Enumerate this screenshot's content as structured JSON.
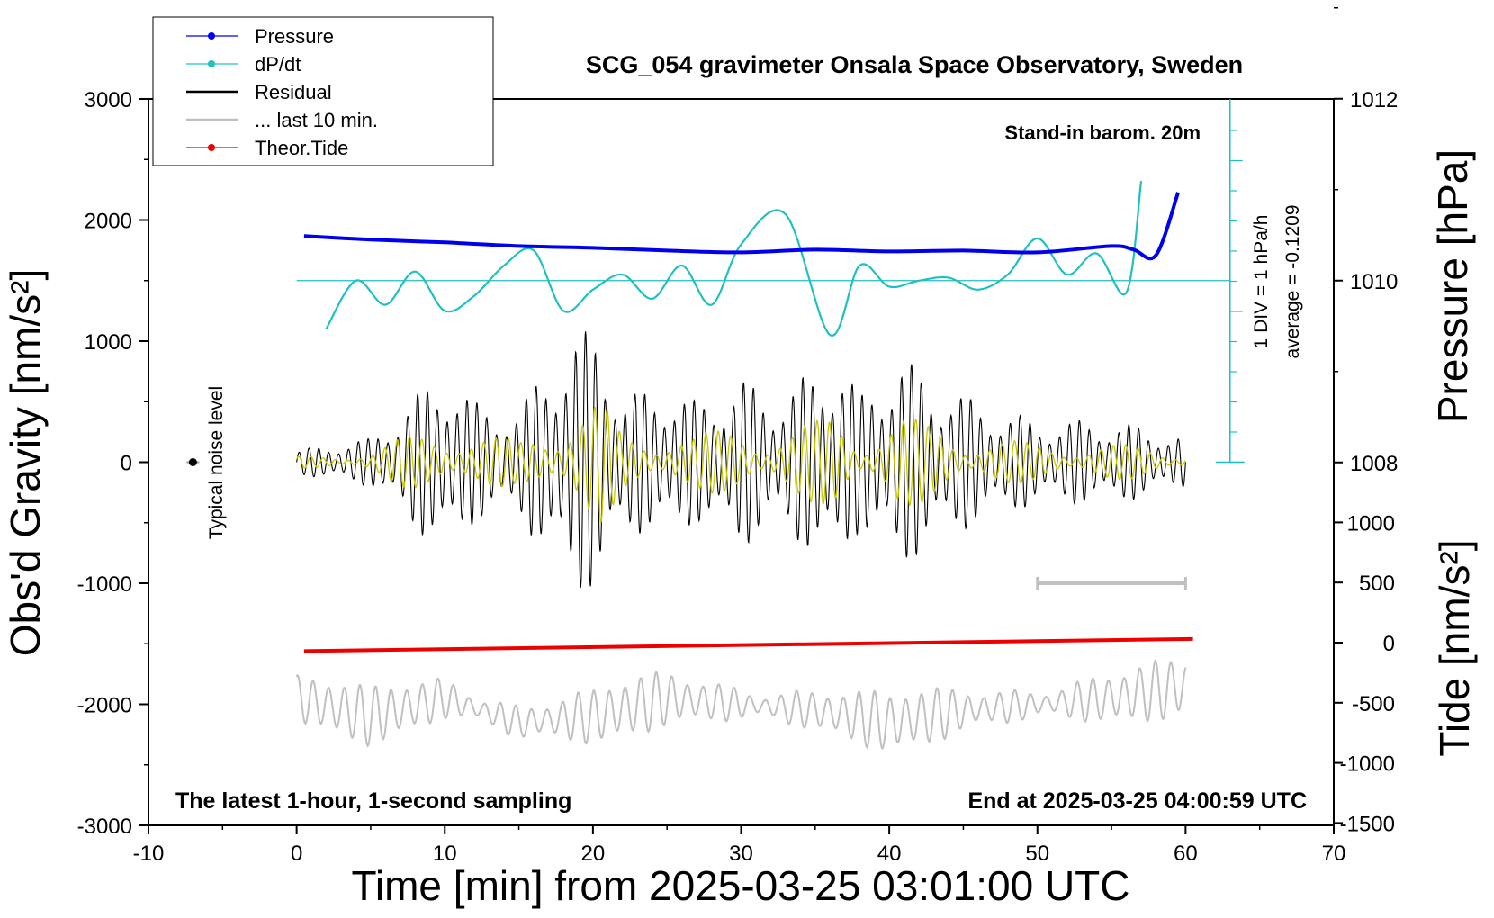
{
  "chart_data": {
    "type": "line",
    "title": "SCG_054 gravimeter Onsala Space Observatory, Sweden",
    "xlabel": "Time [min] from 2025-03-25 03:01:00 UTC",
    "ylabel_left": "Obs'd Gravity [nm/s²]",
    "ylabel_right_pressure": "Pressure [hPa]",
    "ylabel_right_tide": "Tide [nm/s²]",
    "xlim": [
      -10,
      70
    ],
    "ylim": [
      -3000,
      3000
    ],
    "x_ticks": [
      "-10",
      "0",
      "10",
      "20",
      "30",
      "40",
      "50",
      "60",
      "70"
    ],
    "y_ticks": [
      "3000",
      "2000",
      "1000",
      "0",
      "-1000",
      "-2000",
      "-3000"
    ],
    "pressure_ticks": [
      "1012",
      "1010",
      "1008"
    ],
    "tide_ticks": [
      "1000",
      "500",
      "0",
      "-500",
      "-1000",
      "-1500"
    ],
    "grid": false,
    "legend_position": "top-left",
    "legend": [
      {
        "name": "Pressure",
        "color": "#0000ee"
      },
      {
        "name": "dP/dt",
        "color": "#20c0c0"
      },
      {
        "name": "Residual",
        "color": "#000000"
      },
      {
        "name": "... last 10 min.",
        "color": "#c0c0c0"
      },
      {
        "name": "Theor.Tide",
        "color": "#ee0000"
      }
    ],
    "annotations": {
      "stand_in": "Stand-in barom. 20m",
      "div": "1 DIV = 1 hPa/h",
      "average": "average = -0.1209",
      "noise": "Typical noise level",
      "sampling": "The latest 1-hour, 1-second sampling",
      "end": "End at 2025-03-25 04:00:59 UTC"
    },
    "series": [
      {
        "name": "Pressure",
        "x": [
          0.5,
          5,
          10,
          15,
          20,
          25,
          30,
          35,
          40,
          45,
          50,
          55,
          56.5,
          58,
          59.5
        ],
        "values": [
          1010.49,
          1010.45,
          1010.42,
          1010.38,
          1010.36,
          1010.33,
          1010.31,
          1010.34,
          1010.32,
          1010.33,
          1010.31,
          1010.38,
          1010.34,
          1010.28,
          1010.97
        ]
      },
      {
        "name": "dP/dt",
        "x": [
          2,
          4,
          6,
          8,
          10,
          12,
          14,
          16,
          18,
          20,
          22,
          24,
          26,
          28,
          30,
          33,
          36,
          38,
          40,
          42,
          44,
          46,
          48,
          50,
          52,
          54,
          56,
          57
        ],
        "values": [
          -1.6,
          0.0,
          -0.8,
          0.3,
          -1.0,
          -0.5,
          0.5,
          1.0,
          -1.0,
          -0.3,
          0.2,
          -0.6,
          0.5,
          -0.8,
          1.2,
          2.2,
          -1.8,
          0.5,
          -0.2,
          0.0,
          0.1,
          -0.3,
          0.2,
          1.4,
          0.2,
          0.9,
          -0.4,
          3.3
        ]
      },
      {
        "name": "Residual",
        "x": [
          0,
          5,
          10,
          12,
          15,
          17,
          19,
          20.5,
          22,
          25,
          27,
          30,
          32,
          35,
          36.5,
          38,
          40.5,
          43,
          46,
          50,
          54,
          57,
          60
        ],
        "amplitude": [
          100,
          200,
          780,
          500,
          420,
          870,
          1050,
          1150,
          550,
          650,
          500,
          700,
          560,
          750,
          950,
          550,
          900,
          680,
          500,
          340,
          350,
          300,
          200
        ]
      },
      {
        "name": "... last 10 min.",
        "x": [
          0,
          5,
          10,
          15,
          20,
          25,
          30,
          35,
          40,
          45,
          50,
          55,
          60
        ],
        "values": [
          -1950,
          -2100,
          -1950,
          -2150,
          -2100,
          -1950,
          -2000,
          -2050,
          -2150,
          -2050,
          -2000,
          -1950,
          -1850
        ]
      },
      {
        "name": "Theor.Tide",
        "x": [
          0.5,
          60.5
        ],
        "values": [
          -1560,
          -1460
        ]
      },
      {
        "name": "Typical noise level",
        "x": [
          -7
        ],
        "values": [
          0
        ]
      }
    ]
  }
}
